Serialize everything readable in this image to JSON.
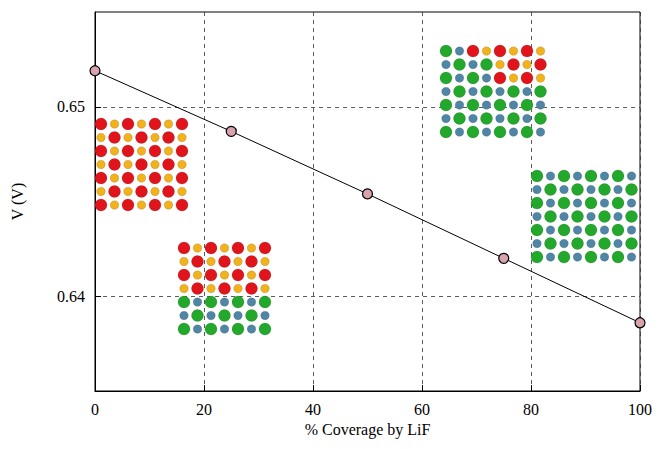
{
  "chart_data": {
    "type": "line",
    "x_label": "% Coverage by LiF",
    "y_label": "V (V)",
    "x": [
      0,
      25,
      50,
      75,
      100
    ],
    "values": [
      0.6519,
      0.6487,
      0.6454,
      0.642,
      0.6386
    ],
    "xlim": [
      0,
      100
    ],
    "xticks": [
      0,
      20,
      40,
      60,
      80,
      100
    ],
    "ylim": [
      0.635,
      0.655
    ],
    "yticks": [
      0.64,
      0.65
    ],
    "grid": true,
    "color": "#000000",
    "marker": "circle"
  }
}
